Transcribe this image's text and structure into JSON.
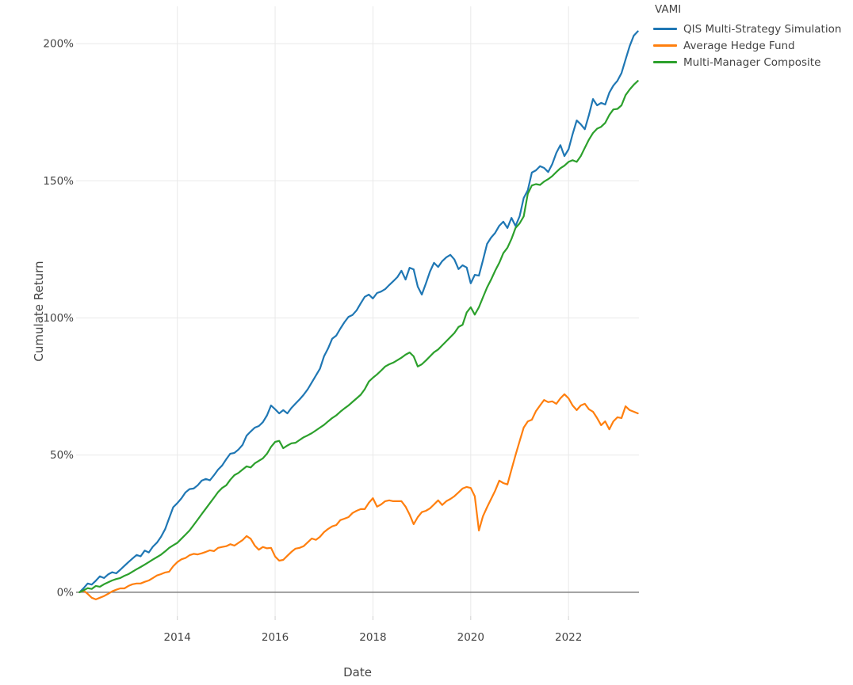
{
  "chart_data": {
    "type": "line",
    "title": "",
    "xlabel": "Date",
    "ylabel": "Cumulate Return",
    "legend_title": "VAMI",
    "legend_position": "top-right",
    "grid": true,
    "zero_line": true,
    "x_unit": "decimal_year_monthly",
    "x_start": 2012.0,
    "x_step": 0.0833333,
    "x_range": [
      2011.93,
      2023.44
    ],
    "y_range": [
      -8.7,
      213.6
    ],
    "x_ticks": [
      {
        "value": 2014,
        "label": "2014"
      },
      {
        "value": 2016,
        "label": "2016"
      },
      {
        "value": 2018,
        "label": "2018"
      },
      {
        "value": 2020,
        "label": "2020"
      },
      {
        "value": 2022,
        "label": "2022"
      }
    ],
    "y_ticks": [
      {
        "value": 0,
        "label": "0%"
      },
      {
        "value": 50,
        "label": "50%"
      },
      {
        "value": 100,
        "label": "100%"
      },
      {
        "value": 150,
        "label": "150%"
      },
      {
        "value": 200,
        "label": "200%"
      }
    ],
    "colors": {
      "grid": "#e9e9e9",
      "zero_line": "#7f7f7f",
      "tick_text": "#444444",
      "tick_stub": "#d0d0d0"
    },
    "series": [
      {
        "name": "QIS Multi-Strategy Simulation",
        "color": "#1f77b4",
        "values": [
          0,
          1.5,
          3.2,
          2.8,
          4.2,
          5.8,
          5.2,
          6.5,
          7.3,
          6.9,
          8.2,
          9.6,
          11.0,
          12.3,
          13.6,
          13.1,
          15.2,
          14.5,
          16.6,
          18.1,
          20.2,
          23.0,
          27.0,
          31.0,
          32.5,
          34.2,
          36.4,
          37.6,
          37.8,
          39.0,
          40.7,
          41.3,
          40.8,
          42.7,
          44.7,
          46.2,
          48.5,
          50.5,
          50.8,
          52.0,
          53.7,
          57.1,
          58.6,
          60.0,
          60.6,
          62.0,
          64.5,
          68.1,
          66.7,
          65.2,
          66.4,
          65.2,
          67.2,
          68.8,
          70.3,
          72.0,
          74.0,
          76.5,
          79.0,
          81.5,
          86.0,
          88.9,
          92.4,
          93.6,
          96.1,
          98.4,
          100.4,
          101.1,
          102.8,
          105.3,
          107.7,
          108.5,
          107.1,
          109.1,
          109.6,
          110.5,
          112.0,
          113.4,
          114.9,
          117.2,
          114.0,
          118.3,
          117.7,
          111.4,
          108.5,
          112.6,
          116.9,
          120.1,
          118.6,
          120.7,
          122.1,
          123.0,
          121.3,
          117.8,
          119.2,
          118.4,
          112.6,
          115.7,
          115.4,
          121.0,
          127.0,
          129.3,
          131.0,
          133.6,
          135.1,
          132.8,
          136.5,
          133.5,
          137.1,
          143.7,
          146.6,
          153.0,
          153.8,
          155.3,
          154.7,
          153.2,
          156.1,
          160.2,
          163.0,
          159.0,
          161.5,
          167.0,
          172.0,
          170.6,
          168.8,
          174.0,
          179.8,
          177.5,
          178.4,
          177.8,
          182.1,
          184.7,
          186.5,
          189.3,
          194.2,
          199.1,
          202.9,
          204.5
        ]
      },
      {
        "name": "Average Hedge Fund",
        "color": "#ff7f0e",
        "values": [
          0,
          0.6,
          -0.6,
          -2.0,
          -2.6,
          -2.0,
          -1.4,
          -0.6,
          0.3,
          0.9,
          1.4,
          1.4,
          2.3,
          2.9,
          3.2,
          3.2,
          3.8,
          4.3,
          5.2,
          6.1,
          6.6,
          7.2,
          7.5,
          9.5,
          11.0,
          12.0,
          12.5,
          13.5,
          14.0,
          13.8,
          14.2,
          14.7,
          15.3,
          15.0,
          16.2,
          16.5,
          16.8,
          17.5,
          17.0,
          18.0,
          19.0,
          20.5,
          19.5,
          17.0,
          15.5,
          16.5,
          16.0,
          16.2,
          13.0,
          11.5,
          11.8,
          13.3,
          14.7,
          15.9,
          16.2,
          16.8,
          18.2,
          19.6,
          19.1,
          20.2,
          21.9,
          23.1,
          24.0,
          24.5,
          26.3,
          26.8,
          27.4,
          28.9,
          29.7,
          30.3,
          30.3,
          32.6,
          34.3,
          31.2,
          32.0,
          33.2,
          33.5,
          33.2,
          33.2,
          33.2,
          31.2,
          28.3,
          24.8,
          27.4,
          29.2,
          29.7,
          30.6,
          32.0,
          33.5,
          31.8,
          33.2,
          34.0,
          35.0,
          36.4,
          37.8,
          38.4,
          38.0,
          35.0,
          22.5,
          27.7,
          31.0,
          34.0,
          37.0,
          40.7,
          39.8,
          39.3,
          44.7,
          50.0,
          55.1,
          60.0,
          62.3,
          62.9,
          66.0,
          68.1,
          70.1,
          69.3,
          69.6,
          68.7,
          70.7,
          72.2,
          70.7,
          68.1,
          66.4,
          68.1,
          68.7,
          66.7,
          65.8,
          63.5,
          60.9,
          62.3,
          59.4,
          62.3,
          63.8,
          63.5,
          67.8,
          66.4,
          65.8,
          65.2
        ]
      },
      {
        "name": "Multi-Manager Composite",
        "color": "#2ca02c",
        "values": [
          0,
          0.7,
          1.5,
          1.2,
          2.3,
          2.0,
          2.9,
          3.6,
          4.3,
          4.8,
          5.2,
          6.0,
          6.6,
          7.5,
          8.4,
          9.2,
          10.1,
          11.0,
          11.9,
          12.8,
          13.7,
          14.9,
          16.2,
          17.1,
          18.0,
          19.5,
          21.0,
          22.5,
          24.5,
          26.5,
          28.5,
          30.5,
          32.5,
          34.5,
          36.5,
          38.0,
          39.0,
          41.0,
          42.7,
          43.5,
          44.7,
          45.9,
          45.5,
          47.0,
          47.9,
          48.8,
          50.5,
          53.0,
          54.8,
          55.2,
          52.5,
          53.5,
          54.3,
          54.5,
          55.5,
          56.5,
          57.2,
          58.0,
          59.0,
          60.0,
          61.0,
          62.3,
          63.5,
          64.5,
          65.8,
          67.0,
          68.1,
          69.4,
          70.7,
          72.0,
          74.0,
          76.8,
          78.2,
          79.4,
          80.8,
          82.3,
          83.1,
          83.7,
          84.6,
          85.5,
          86.6,
          87.4,
          86.0,
          82.3,
          83.1,
          84.5,
          86.0,
          87.5,
          88.5,
          90.0,
          91.5,
          93.0,
          94.5,
          96.7,
          97.5,
          102.0,
          103.9,
          101.2,
          103.9,
          107.5,
          111.1,
          114.0,
          117.2,
          120.1,
          123.6,
          125.6,
          128.8,
          132.8,
          134.5,
          137.0,
          145.3,
          148.3,
          148.8,
          148.5,
          149.7,
          150.6,
          151.7,
          153.2,
          154.6,
          155.5,
          156.9,
          157.5,
          156.9,
          159.0,
          162.0,
          165.0,
          167.4,
          169.0,
          169.7,
          171.1,
          174.0,
          176.0,
          176.2,
          177.5,
          181.2,
          183.3,
          185.0,
          186.4
        ]
      }
    ]
  }
}
